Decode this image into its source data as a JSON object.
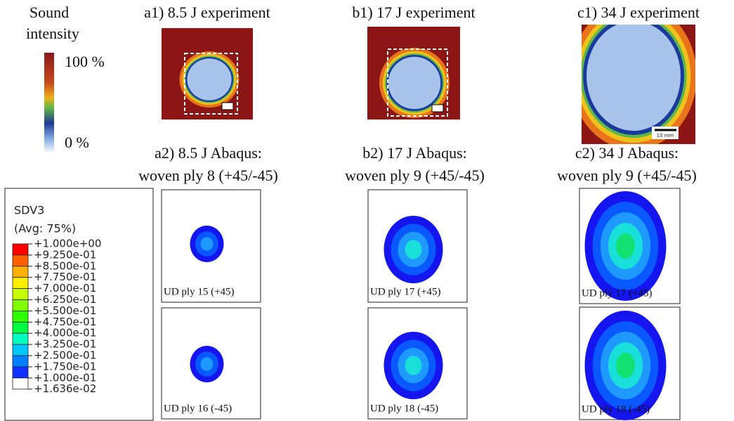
{
  "colorbar": {
    "title": [
      "Sound",
      "intensity"
    ],
    "max_label": "100 %",
    "min_label": "0 %"
  },
  "experiments": [
    {
      "title": "a1) 8.5 J experiment"
    },
    {
      "title": "b1) 17 J experiment"
    },
    {
      "title": "c1) 34 J experiment",
      "scale_label": "10 mm"
    }
  ],
  "simulations": [
    {
      "title": [
        "a2) 8.5 J Abaqus:",
        "woven ply 8 (+45/-45)"
      ],
      "plies": [
        "UD ply 15 (+45)",
        "UD ply 16 (-45)"
      ]
    },
    {
      "title": [
        "b2) 17 J Abaqus:",
        "woven ply 9 (+45/-45)"
      ],
      "plies": [
        "UD ply 17 (+45)",
        "UD ply 18 (-45)"
      ]
    },
    {
      "title": [
        "c2) 34 J Abaqus:",
        "woven ply 9 (+45/-45)"
      ],
      "plies": [
        "UD ply 17 (+45)",
        "UD ply 18 (-45)"
      ]
    }
  ],
  "legend": {
    "title": "SDV3",
    "subtitle": "(Avg: 75%)",
    "labels": [
      "+1.000e+00",
      "+9.250e-01",
      "+8.500e-01",
      "+7.750e-01",
      "+7.000e-01",
      "+6.250e-01",
      "+5.500e-01",
      "+4.750e-01",
      "+4.000e-01",
      "+3.250e-01",
      "+2.500e-01",
      "+1.750e-01",
      "+1.000e-01",
      "+1.636e-02"
    ]
  }
}
